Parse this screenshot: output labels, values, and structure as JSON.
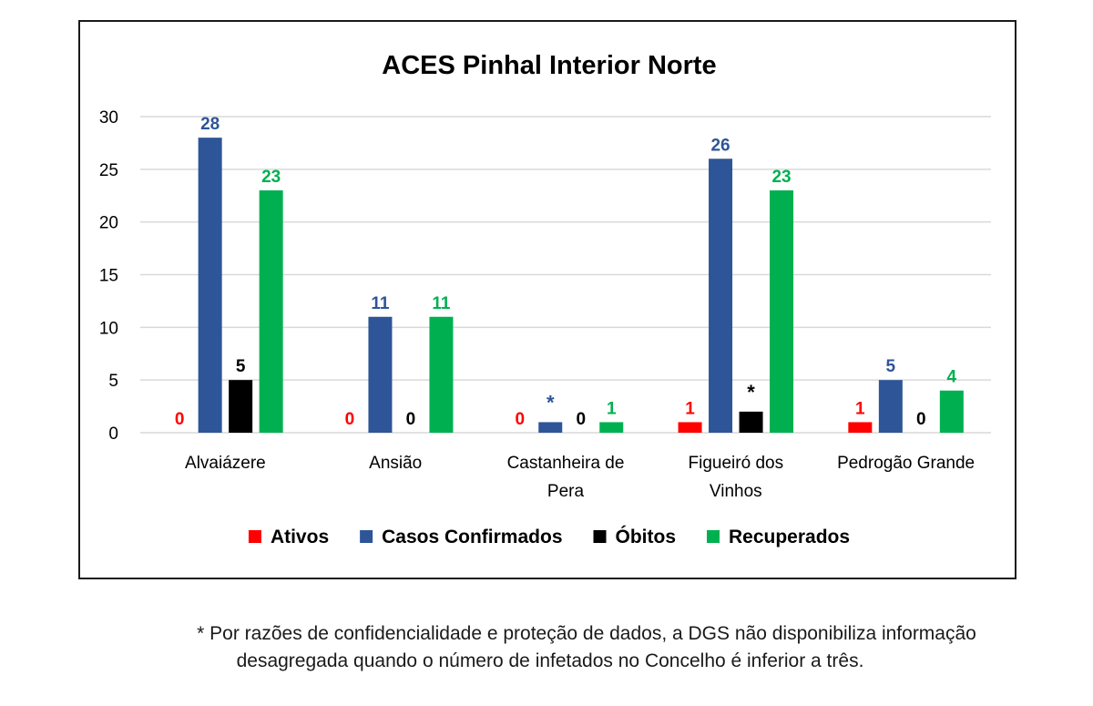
{
  "chart_data": {
    "type": "bar",
    "title": "ACES Pinhal Interior Norte",
    "categories": [
      [
        "Alvaiázere"
      ],
      [
        "Ansião"
      ],
      [
        "Castanheira de",
        "Pera"
      ],
      [
        "Figueiró dos",
        "Vinhos"
      ],
      [
        "Pedrogão Grande"
      ]
    ],
    "series": [
      {
        "name": "Ativos",
        "color": "#ff0000",
        "values": [
          0,
          0,
          0,
          1,
          1
        ],
        "labels": [
          "0",
          "0",
          "0",
          "1",
          "1"
        ]
      },
      {
        "name": "Casos Confirmados",
        "color": "#2e5597",
        "values": [
          28,
          11,
          1,
          26,
          5
        ],
        "labels": [
          "28",
          "11",
          "*",
          "26",
          "5"
        ]
      },
      {
        "name": "Óbitos",
        "color": "#000000",
        "values": [
          5,
          0,
          0,
          2,
          0
        ],
        "labels": [
          "5",
          "0",
          "0",
          "*",
          "0"
        ]
      },
      {
        "name": "Recuperados",
        "color": "#00b050",
        "values": [
          23,
          11,
          1,
          23,
          4
        ],
        "labels": [
          "23",
          "11",
          "1",
          "23",
          "4"
        ]
      }
    ],
    "yticks": [
      0,
      5,
      10,
      15,
      20,
      25,
      30
    ],
    "ylim": [
      0,
      30
    ],
    "grid": true,
    "legend_position": "bottom"
  },
  "footnote": {
    "line1": "* Por razões de confidencialidade e proteção de dados, a DGS não disponibiliza informação",
    "line2": "desagregada quando o número de infetados no Concelho é inferior a três."
  }
}
